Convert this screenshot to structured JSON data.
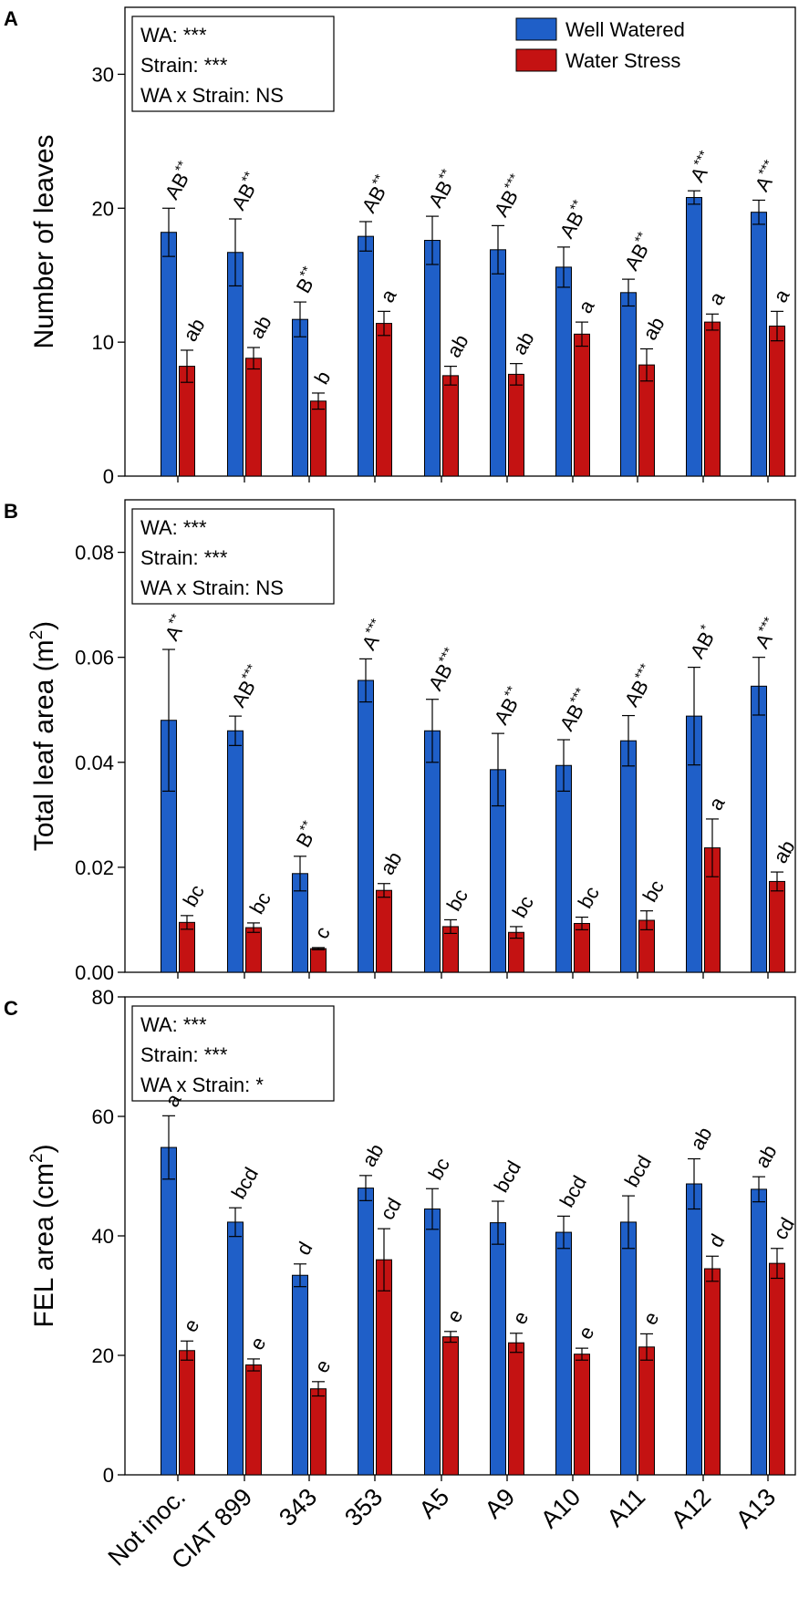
{
  "figure": {
    "x_categories": [
      "Not inoc.",
      "CIAT 899",
      "343",
      "353",
      "A5",
      "A9",
      "A10",
      "A11",
      "A12",
      "A13"
    ],
    "legend": [
      {
        "label": "Well Watered",
        "color": "#1f5fc8"
      },
      {
        "label": "Water Stress",
        "color": "#c41212"
      }
    ]
  },
  "chart_data": [
    {
      "type": "bar",
      "panel_label": "A",
      "ylabel": "Number of leaves",
      "ylim": [
        0,
        35
      ],
      "yticks": [
        0,
        10,
        20,
        30
      ],
      "stats": [
        "WA: ***",
        "Strain: ***",
        "WA x Strain: NS"
      ],
      "categories": [
        "Not inoc.",
        "CIAT 899",
        "343",
        "353",
        "A5",
        "A9",
        "A10",
        "A11",
        "A12",
        "A13"
      ],
      "series": [
        {
          "name": "Well Watered",
          "color": "#1f5fc8",
          "values": [
            18.2,
            16.7,
            11.7,
            17.9,
            17.6,
            16.9,
            15.6,
            13.7,
            20.8,
            19.7
          ],
          "errors": [
            1.8,
            2.5,
            1.3,
            1.1,
            1.8,
            1.8,
            1.5,
            1.0,
            0.5,
            0.9
          ],
          "letters": [
            {
              "base": "AB",
              "sup": "**"
            },
            {
              "base": "AB",
              "sup": "**"
            },
            {
              "base": "B",
              "sup": "**"
            },
            {
              "base": "AB",
              "sup": "**"
            },
            {
              "base": "AB",
              "sup": "**"
            },
            {
              "base": "AB",
              "sup": "***"
            },
            {
              "base": "AB",
              "sup": "**"
            },
            {
              "base": "AB",
              "sup": "**"
            },
            {
              "base": "A",
              "sup": "***"
            },
            {
              "base": "A",
              "sup": "***"
            }
          ]
        },
        {
          "name": "Water Stress",
          "color": "#c41212",
          "values": [
            8.2,
            8.8,
            5.6,
            11.4,
            7.5,
            7.6,
            10.6,
            8.3,
            11.5,
            11.2
          ],
          "errors": [
            1.2,
            0.8,
            0.6,
            0.9,
            0.7,
            0.8,
            0.9,
            1.2,
            0.6,
            1.1
          ],
          "letters": [
            {
              "base": "ab",
              "sup": ""
            },
            {
              "base": "ab",
              "sup": ""
            },
            {
              "base": "b",
              "sup": ""
            },
            {
              "base": "a",
              "sup": ""
            },
            {
              "base": "ab",
              "sup": ""
            },
            {
              "base": "ab",
              "sup": ""
            },
            {
              "base": "a",
              "sup": ""
            },
            {
              "base": "ab",
              "sup": ""
            },
            {
              "base": "a",
              "sup": ""
            },
            {
              "base": "a",
              "sup": ""
            }
          ]
        }
      ]
    },
    {
      "type": "bar",
      "panel_label": "B",
      "ylabel": "Total leaf area (m",
      "ylabel_sup": "2",
      "ylabel_end": ")",
      "ylim": [
        0,
        0.09
      ],
      "yticks": [
        "0.00",
        "0.02",
        "0.04",
        "0.06",
        "0.08"
      ],
      "stats": [
        "WA: ***",
        "Strain: ***",
        "WA x Strain: NS"
      ],
      "categories": [
        "Not inoc.",
        "CIAT 899",
        "343",
        "353",
        "A5",
        "A9",
        "A10",
        "A11",
        "A12",
        "A13"
      ],
      "series": [
        {
          "name": "Well Watered",
          "color": "#1f5fc8",
          "values": [
            0.048,
            0.046,
            0.0188,
            0.0556,
            0.046,
            0.0386,
            0.0394,
            0.0441,
            0.0488,
            0.0545
          ],
          "errors": [
            0.0135,
            0.0028,
            0.0033,
            0.0041,
            0.006,
            0.0069,
            0.0049,
            0.0048,
            0.0093,
            0.0055
          ],
          "letters": [
            {
              "base": "A",
              "sup": "**"
            },
            {
              "base": "AB",
              "sup": "***"
            },
            {
              "base": "B",
              "sup": "**"
            },
            {
              "base": "A",
              "sup": "***"
            },
            {
              "base": "AB",
              "sup": "***"
            },
            {
              "base": "AB",
              "sup": "**"
            },
            {
              "base": "AB",
              "sup": "***"
            },
            {
              "base": "AB",
              "sup": "***"
            },
            {
              "base": "AB",
              "sup": "*"
            },
            {
              "base": "A",
              "sup": "***"
            }
          ]
        },
        {
          "name": "Water Stress",
          "color": "#c41212",
          "values": [
            0.0095,
            0.0085,
            0.0045,
            0.0156,
            0.0087,
            0.0076,
            0.0093,
            0.0099,
            0.0237,
            0.0173
          ],
          "errors": [
            0.0013,
            0.0009,
            0.0002,
            0.0013,
            0.0013,
            0.0011,
            0.0012,
            0.0018,
            0.0055,
            0.0018
          ],
          "letters": [
            {
              "base": "bc",
              "sup": ""
            },
            {
              "base": "bc",
              "sup": ""
            },
            {
              "base": "c",
              "sup": ""
            },
            {
              "base": "ab",
              "sup": ""
            },
            {
              "base": "bc",
              "sup": ""
            },
            {
              "base": "bc",
              "sup": ""
            },
            {
              "base": "bc",
              "sup": ""
            },
            {
              "base": "bc",
              "sup": ""
            },
            {
              "base": "a",
              "sup": ""
            },
            {
              "base": "ab",
              "sup": ""
            }
          ]
        }
      ]
    },
    {
      "type": "bar",
      "panel_label": "C",
      "ylabel": "FEL area (cm",
      "ylabel_sup": "2",
      "ylabel_end": ")",
      "ylim": [
        0,
        80
      ],
      "yticks": [
        0,
        20,
        40,
        60,
        80
      ],
      "stats": [
        "WA: ***",
        "Strain: ***",
        "WA x Strain: *"
      ],
      "categories": [
        "Not inoc.",
        "CIAT 899",
        "343",
        "353",
        "A5",
        "A9",
        "A10",
        "A11",
        "A12",
        "A13"
      ],
      "series": [
        {
          "name": "Well Watered",
          "color": "#1f5fc8",
          "values": [
            54.8,
            42.3,
            33.4,
            48.0,
            44.5,
            42.2,
            40.6,
            42.3,
            48.7,
            47.8
          ],
          "errors": [
            5.3,
            2.4,
            1.9,
            2.1,
            3.4,
            3.6,
            2.7,
            4.4,
            4.2,
            2.1
          ],
          "letters": [
            {
              "base": "a",
              "sup": ""
            },
            {
              "base": "bcd",
              "sup": ""
            },
            {
              "base": "d",
              "sup": ""
            },
            {
              "base": "ab",
              "sup": ""
            },
            {
              "base": "bc",
              "sup": ""
            },
            {
              "base": "bcd",
              "sup": ""
            },
            {
              "base": "bcd",
              "sup": ""
            },
            {
              "base": "bcd",
              "sup": ""
            },
            {
              "base": "ab",
              "sup": ""
            },
            {
              "base": "ab",
              "sup": ""
            }
          ]
        },
        {
          "name": "Water Stress",
          "color": "#c41212",
          "values": [
            20.8,
            18.4,
            14.4,
            36.0,
            23.1,
            22.1,
            20.2,
            21.4,
            34.5,
            35.4
          ],
          "errors": [
            1.6,
            1.0,
            1.2,
            5.2,
            0.9,
            1.6,
            1.0,
            2.2,
            2.1,
            2.5
          ],
          "letters": [
            {
              "base": "e",
              "sup": ""
            },
            {
              "base": "e",
              "sup": ""
            },
            {
              "base": "e",
              "sup": ""
            },
            {
              "base": "cd",
              "sup": ""
            },
            {
              "base": "e",
              "sup": ""
            },
            {
              "base": "e",
              "sup": ""
            },
            {
              "base": "e",
              "sup": ""
            },
            {
              "base": "e",
              "sup": ""
            },
            {
              "base": "d",
              "sup": ""
            },
            {
              "base": "cd",
              "sup": ""
            }
          ]
        }
      ]
    }
  ]
}
